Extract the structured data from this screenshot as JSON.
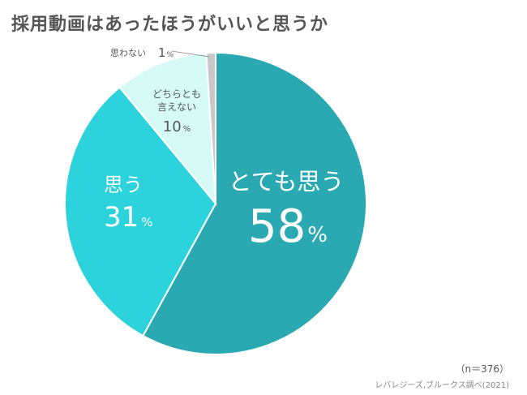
{
  "title": "採用動画はあったほうがいいと思うか",
  "footer": {
    "sample_size": "（n＝376）",
    "source": "レバレジーズ,ブルークス調べ(2021)"
  },
  "colors": {
    "totemo": "#2BA9B2",
    "omou": "#2DD3DC",
    "dochira": "#D6FAF5",
    "omowanai": "#C8C8C8",
    "outline": "#ffffff"
  },
  "chart_data": {
    "type": "pie",
    "title": "採用動画はあったほうがいいと思うか",
    "slices": [
      {
        "label": "とても思う",
        "value": 58,
        "unit": "%",
        "color": "#2BA9B2"
      },
      {
        "label": "思う",
        "value": 31,
        "unit": "%",
        "color": "#2DD3DC"
      },
      {
        "label": "どちらとも言えない",
        "value": 10,
        "unit": "%",
        "color": "#D6FAF5"
      },
      {
        "label": "思わない",
        "value": 1,
        "unit": "%",
        "color": "#C8C8C8"
      }
    ],
    "label_lines": {
      "dochira": [
        "どちらとも",
        "言えない"
      ]
    }
  }
}
